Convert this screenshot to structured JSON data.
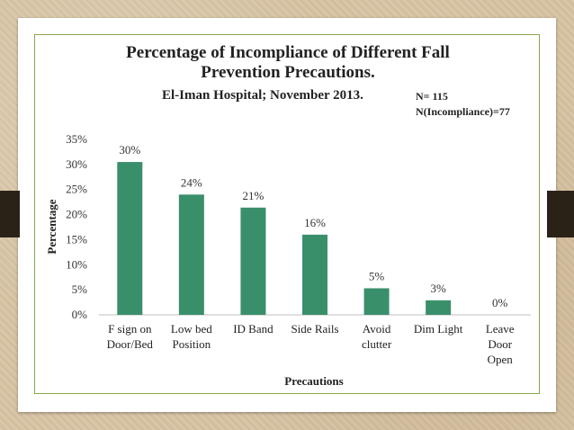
{
  "chart_data": {
    "type": "bar",
    "title_line1": "Percentage of Incompliance of Different Fall",
    "title_line2": "Prevention Precautions.",
    "subtitle": "El-Iman Hospital; November 2013.",
    "n_total": "N= 115",
    "n_incompliance": "N(Incompliance)=77",
    "xlabel": "Precautions",
    "ylabel": "Percentage",
    "categories": [
      [
        "F sign on",
        "Door/Bed"
      ],
      [
        "Low bed",
        "Position"
      ],
      [
        "ID Band"
      ],
      [
        "Side Rails"
      ],
      [
        "Avoid",
        "clutter"
      ],
      [
        "Dim Light"
      ],
      [
        "Leave",
        "Door",
        "Open"
      ]
    ],
    "values": [
      30.5,
      24,
      21.4,
      16,
      5.3,
      2.9,
      0
    ],
    "data_labels": [
      "30%",
      "24%",
      "21%",
      "16%",
      "5%",
      "3%",
      "0%"
    ],
    "ylim": [
      0,
      35
    ],
    "yticks": [
      0,
      5,
      10,
      15,
      20,
      25,
      30,
      35
    ],
    "ytick_labels": [
      "0%",
      "5%",
      "10%",
      "15%",
      "20%",
      "25%",
      "30%",
      "35%"
    ],
    "bar_color": "#3a8f6b",
    "grid": false,
    "legend": "none"
  }
}
